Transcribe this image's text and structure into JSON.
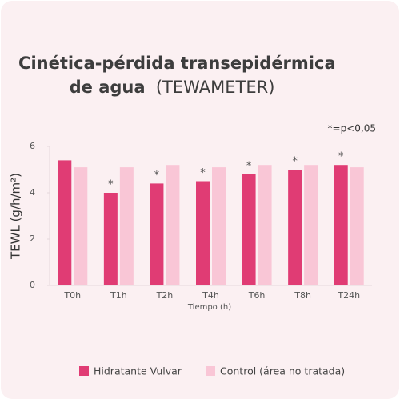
{
  "chart_data": {
    "type": "bar",
    "title": [
      "Cinética-pérdida transepidérmica",
      "de agua"
    ],
    "title_note": "(TEWAMETER)",
    "annotation": "*=p<0,05",
    "y_label": "TEWL (g/h/m²)",
    "x_label": "Tiempo (h)",
    "categories": [
      "T0h",
      "T1h",
      "T2h",
      "T4h",
      "T6h",
      "T8h",
      "T24h"
    ],
    "series": [
      {
        "name": "Hidratante Vulvar",
        "color": "#e03c74",
        "values": [
          5.4,
          4.0,
          4.4,
          4.5,
          4.8,
          5.0,
          5.2
        ],
        "markers": [
          null,
          "*",
          "*",
          "*",
          "*",
          "*",
          "*"
        ]
      },
      {
        "name": "Control (área no tratada)",
        "color": "#f9c6d6",
        "values": [
          5.1,
          5.1,
          5.2,
          5.1,
          5.2,
          5.2,
          5.1
        ]
      }
    ],
    "ylim": [
      0,
      6
    ],
    "yticks": [
      0,
      2,
      4,
      6
    ]
  }
}
